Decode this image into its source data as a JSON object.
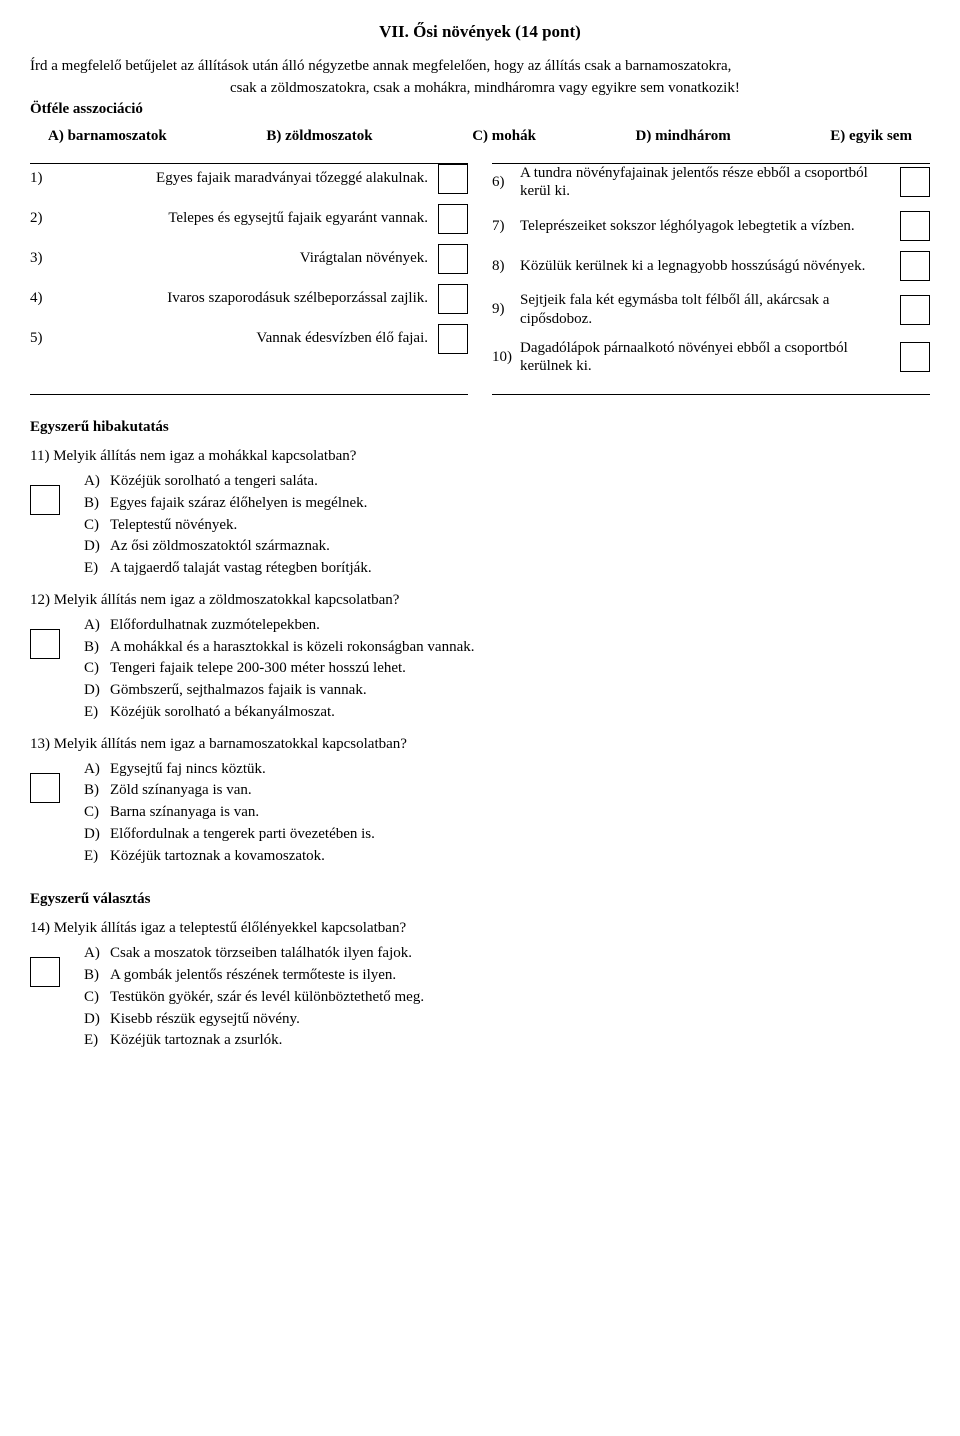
{
  "title": "VII. Ősi növények (14 pont)",
  "intro1": "Írd a megfelelő betűjelet az állítások után álló négyzetbe annak megfelelően, hogy az állítás csak a barnamoszatokra,",
  "intro2": "csak a zöldmoszatokra, csak a mohákra, mindháromra vagy egyikre sem vonatkozik!",
  "association_label": "Ötféle asszociáció",
  "options": {
    "a": "A) barnamoszatok",
    "b": "B) zöldmoszatok",
    "c": "C) mohák",
    "d": "D) mindhárom",
    "e": "E) egyik sem"
  },
  "left": [
    {
      "n": "1)",
      "t": "Egyes fajaik maradványai tőzeggé alakulnak."
    },
    {
      "n": "2)",
      "t": "Telepes és egysejtű fajaik egyaránt vannak."
    },
    {
      "n": "3)",
      "t": "Virágtalan növények."
    },
    {
      "n": "4)",
      "t": "Ivaros szaporodásuk szélbeporzással zajlik."
    },
    {
      "n": "5)",
      "t": "Vannak édesvízben élő fajai."
    }
  ],
  "right": [
    {
      "n": "6)",
      "t": "A tundra növényfajainak jelentős része ebből a csoportból kerül ki."
    },
    {
      "n": "7)",
      "t": "Teleprészeiket sokszor léghólyagok lebegtetik a vízben."
    },
    {
      "n": "8)",
      "t": "Közülük kerülnek ki a legnagyobb hosszúságú növények."
    },
    {
      "n": "9)",
      "t": "Sejtjeik fala két egymásba tolt félből áll, akárcsak a cipősdoboz."
    },
    {
      "n": "10)",
      "t": "Dagadólápok párnaalkotó növényei ebből a csoportból kerülnek ki."
    }
  ],
  "simple_error_head": "Egyszerű hibakutatás",
  "q11": {
    "q": "11) Melyik állítás nem igaz a mohákkal kapcsolatban?",
    "a": "Közéjük sorolható a tengeri saláta.",
    "b": "Egyes fajaik száraz élőhelyen is megélnek.",
    "c": "Teleptestű növények.",
    "d": "Az ősi zöldmoszatoktól származnak.",
    "e": "A tajgaerdő talaját vastag rétegben borítják."
  },
  "q12": {
    "q": "12) Melyik állítás nem igaz a zöldmoszatokkal kapcsolatban?",
    "a": "Előfordulhatnak zuzmótelepekben.",
    "b": "A mohákkal és a harasztokkal is közeli rokonságban vannak.",
    "c": "Tengeri fajaik telepe 200-300 méter hosszú lehet.",
    "d": "Gömbszerű, sejthalmazos fajaik is vannak.",
    "e": "Közéjük sorolható a békanyálmoszat."
  },
  "q13": {
    "q": "13) Melyik állítás nem igaz a barnamoszatokkal kapcsolatban?",
    "a": "Egysejtű faj nincs köztük.",
    "b": "Zöld színanyaga is van.",
    "c": "Barna színanyaga is van.",
    "d": "Előfordulnak a tengerek parti övezetében is.",
    "e": "Közéjük tartoznak a kovamoszatok."
  },
  "simple_choice_head": "Egyszerű választás",
  "q14": {
    "q": "14) Melyik állítás igaz a teleptestű élőlényekkel kapcsolatban?",
    "a": "Csak a moszatok törzseiben találhatók ilyen fajok.",
    "b": "A gombák jelentős részének termőteste is ilyen.",
    "c": "Testükön gyökér, szár és levél különböztethető meg.",
    "d": "Kisebb részük egysejtű növény.",
    "e": "Közéjük tartoznak a zsurlók."
  },
  "letters": {
    "a": "A)",
    "b": "B)",
    "c": "C)",
    "d": "D)",
    "e": "E)"
  }
}
